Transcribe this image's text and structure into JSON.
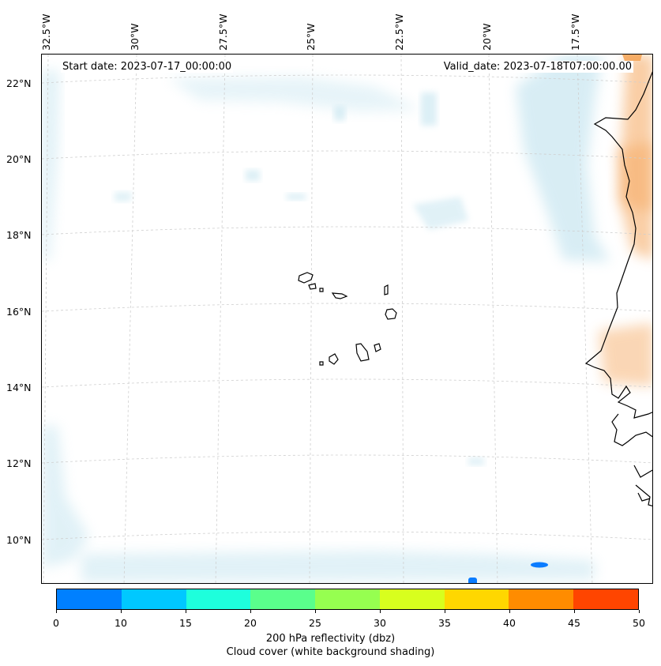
{
  "header": {
    "start_date": "Start date: 2023-07-17_00:00:00",
    "valid_date": "Valid_date: 2023-07-18T07:00:00.00"
  },
  "longitude_labels": [
    "32.5°W",
    "30°W",
    "27.5°W",
    "25°W",
    "22.5°W",
    "20°W",
    "17.5°W"
  ],
  "latitude_labels": [
    "22°N",
    "20°N",
    "18°N",
    "16°N",
    "14°N",
    "12°N",
    "10°N"
  ],
  "colorbar": {
    "colors": [
      "#0080ff",
      "#00c8ff",
      "#1effdc",
      "#5aff8c",
      "#96ff50",
      "#d8ff1e",
      "#ffd700",
      "#ff8c00",
      "#ff4500"
    ],
    "ticks": [
      "0",
      "10",
      "15",
      "20",
      "25",
      "30",
      "35",
      "40",
      "45",
      "50"
    ],
    "label_line1": "200 hPa reflectivity (dbz)",
    "label_line2": "Cloud cover (white background shading)"
  },
  "map_colors": {
    "cloud": "#a9d8e8",
    "reflect_orange": "#f5a65b",
    "reflect_blue": "#0a7cff",
    "coast": "#000000",
    "grid": "#cfcfcf"
  }
}
